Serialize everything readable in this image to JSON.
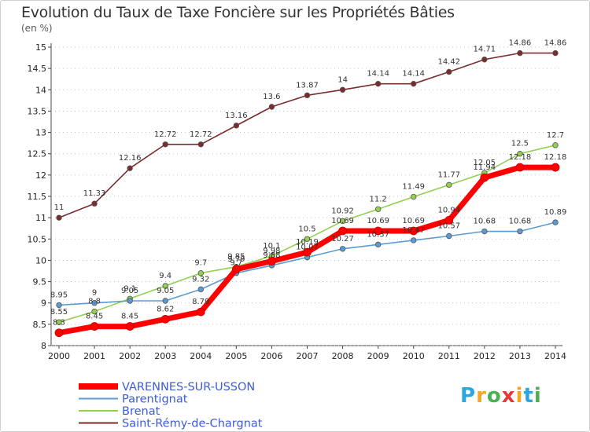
{
  "chart_data": {
    "type": "line",
    "title": "Evolution du Taux de Taxe Foncière sur les Propriétés Bâties",
    "unit": "(en %)",
    "xlabel": "",
    "ylabel": "",
    "x": [
      2000,
      2001,
      2002,
      2003,
      2004,
      2005,
      2006,
      2007,
      2008,
      2009,
      2010,
      2011,
      2012,
      2013,
      2014
    ],
    "yticks": [
      8,
      8.5,
      9,
      9.5,
      10,
      10.5,
      11,
      11.5,
      12,
      12.5,
      13,
      13.5,
      14,
      14.5,
      15
    ],
    "ylim": [
      8,
      15
    ],
    "grid": false,
    "legend": "bottom-left",
    "series": [
      {
        "name": "VARENNES-SUR-USSON",
        "color": "#ff0000",
        "values": [
          8.3,
          8.45,
          8.45,
          8.62,
          8.79,
          9.79,
          9.98,
          10.19,
          10.69,
          10.69,
          10.69,
          10.94,
          11.94,
          12.18,
          12.18
        ],
        "labels": [
          "8.3",
          "8.45",
          "8.45",
          "8.62",
          "8.79",
          "9.79",
          "9.98",
          "10.19",
          "10.69",
          "10.69",
          "10.69",
          "10.94",
          "11.94",
          "12.18",
          "12.18"
        ]
      },
      {
        "name": "Parentignat",
        "color": "#5b9bd5",
        "values": [
          8.95,
          9,
          9.05,
          9.05,
          9.32,
          9.7,
          9.88,
          10.07,
          10.27,
          10.37,
          10.47,
          10.57,
          10.68,
          10.68,
          10.89
        ],
        "labels": [
          "8.95",
          "9",
          "9.05",
          "9.05",
          "9.32",
          "9.7",
          "9.88",
          "10.07",
          "10.27",
          "10.37",
          "10.47",
          "10.57",
          "10.68",
          "10.68",
          "10.89"
        ]
      },
      {
        "name": "Brenat",
        "color": "#92d050",
        "values": [
          8.55,
          8.8,
          9.1,
          9.4,
          9.7,
          9.85,
          10.1,
          10.5,
          10.92,
          11.2,
          11.49,
          11.77,
          12.05,
          12.5,
          12.7
        ],
        "labels": [
          "8.55",
          "8.8",
          "9.1",
          "9.4",
          "9.7",
          "9.85",
          "10.1",
          "10.5",
          "10.92",
          "11.2",
          "11.49",
          "11.77",
          "12.05",
          "12.5",
          "12.7"
        ]
      },
      {
        "name": "Saint-Rémy-de-Chargnat",
        "color": "#7b2c2c",
        "values": [
          11,
          11.33,
          12.16,
          12.72,
          12.72,
          13.16,
          13.6,
          13.87,
          14,
          14.14,
          14.14,
          14.42,
          14.71,
          14.86,
          14.86
        ],
        "labels": [
          "11",
          "11.33",
          "12.16",
          "12.72",
          "12.72",
          "13.16",
          "13.6",
          "13.87",
          "14",
          "14.14",
          "14.14",
          "14.42",
          "14.71",
          "14.86",
          "14.86"
        ]
      }
    ]
  },
  "brand": {
    "letters": [
      "P",
      "r",
      "o",
      "x",
      "i",
      "t",
      "i"
    ],
    "colors": [
      "#29a8e0",
      "#f5a623",
      "#4caf50",
      "#e53935",
      "#f5a623",
      "#29a8e0",
      "#4caf50"
    ]
  }
}
